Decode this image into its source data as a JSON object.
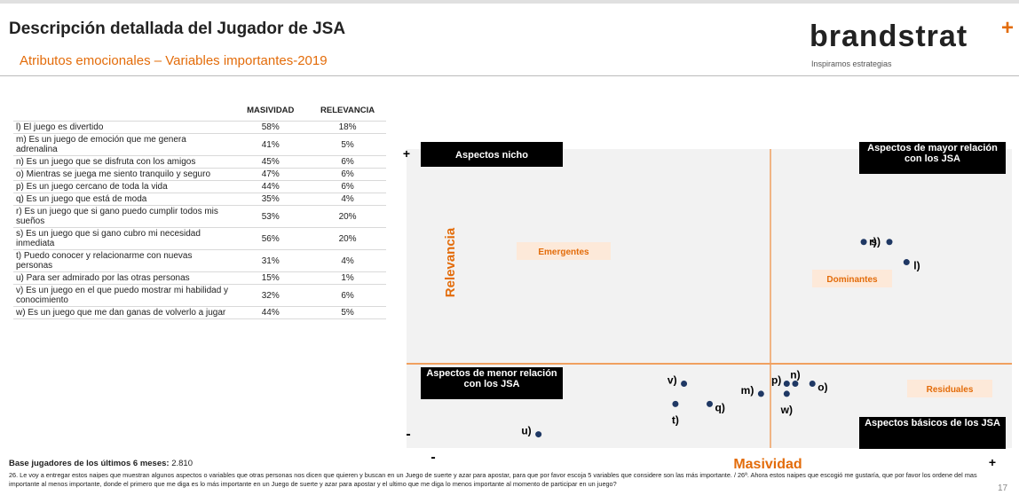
{
  "header": {
    "title": "Descripción detallada del Jugador de JSA",
    "subtitle": "Atributos emocionales – Variables importantes-2019",
    "brand": "brandstrat",
    "tagline": "Inspiramos estrategias"
  },
  "table": {
    "columns": [
      "MASIVIDAD",
      "RELEVANCIA"
    ],
    "rows": [
      [
        "l) El juego es divertido",
        "58%",
        "18%"
      ],
      [
        "m) Es un juego de emoción que me genera adrenalina",
        "41%",
        "5%"
      ],
      [
        "n) Es un juego que se disfruta con los amigos",
        "45%",
        "6%"
      ],
      [
        "o) Mientras se juega me siento tranquilo y seguro",
        "47%",
        "6%"
      ],
      [
        "p) Es un juego cercano de toda la vida",
        "44%",
        "6%"
      ],
      [
        "q) Es un juego que está de moda",
        "35%",
        "4%"
      ],
      [
        "r) Es un juego que si gano puedo cumplir todos mis sueños",
        "53%",
        "20%"
      ],
      [
        "s) Es un juego que si gano cubro mi necesidad inmediata",
        "56%",
        "20%"
      ],
      [
        "t) Puedo conocer y relacionarme con nuevas personas",
        "31%",
        "4%"
      ],
      [
        "u) Para ser admirado por las otras personas",
        "15%",
        "1%"
      ],
      [
        "v) Es un juego en el que puedo mostrar mi habilidad y conocimiento",
        "32%",
        "6%"
      ],
      [
        "w) Es un juego que me dan ganas de volverlo a jugar",
        "44%",
        "5%"
      ]
    ]
  },
  "chart_data": {
    "type": "scatter",
    "x_label": "Masividad",
    "y_label": "Relevancia",
    "y_top": "+",
    "y_bottom": "-",
    "x_left": "-",
    "x_right": "+",
    "labels": [
      "l)",
      "m)",
      "n)",
      "o)",
      "p)",
      "q)",
      "r)",
      "s)",
      "t)",
      "u)",
      "v)",
      "w)"
    ],
    "x": [
      58,
      41,
      45,
      47,
      44,
      35,
      53,
      56,
      31,
      15,
      32,
      44
    ],
    "y": [
      18,
      5,
      6,
      6,
      6,
      4,
      20,
      20,
      4,
      1,
      6,
      5
    ],
    "color": "#1f3864",
    "xlim": [
      0,
      70
    ],
    "ylim": [
      0,
      29
    ],
    "quadrants": {
      "top_left": "Aspectos nicho",
      "top_right": "Aspectos de mayor relación con los JSA",
      "bottom_left": "Aspectos de menor relación con los JSA",
      "bottom_right": "Aspectos básicos de los JSA"
    },
    "zones": {
      "emergentes": "Emergentes",
      "dominantes": "Dominantes",
      "residuales": "Residuales"
    }
  },
  "footer": {
    "base_label": "Base jugadores de los últimos 6 meses:",
    "base_value": "2.810",
    "note": "26. Le voy a entregar estos naipes que muestran algunos aspectos o variables que otras personas nos dicen que quieren y buscan en un Juego de suerte y azar para apostar, para que por favor escoja 5 variables que considere son las más importante. / 26ª. Ahora estos naipes que escogió me gustaría, que por favor los ordene del mas importante al menos importante, donde el primero que me diga es lo más importante en un Juego de suerte y azar para apostar y el ultimo que me diga lo menos importante al momento de participar en un juego?",
    "page": "17"
  }
}
